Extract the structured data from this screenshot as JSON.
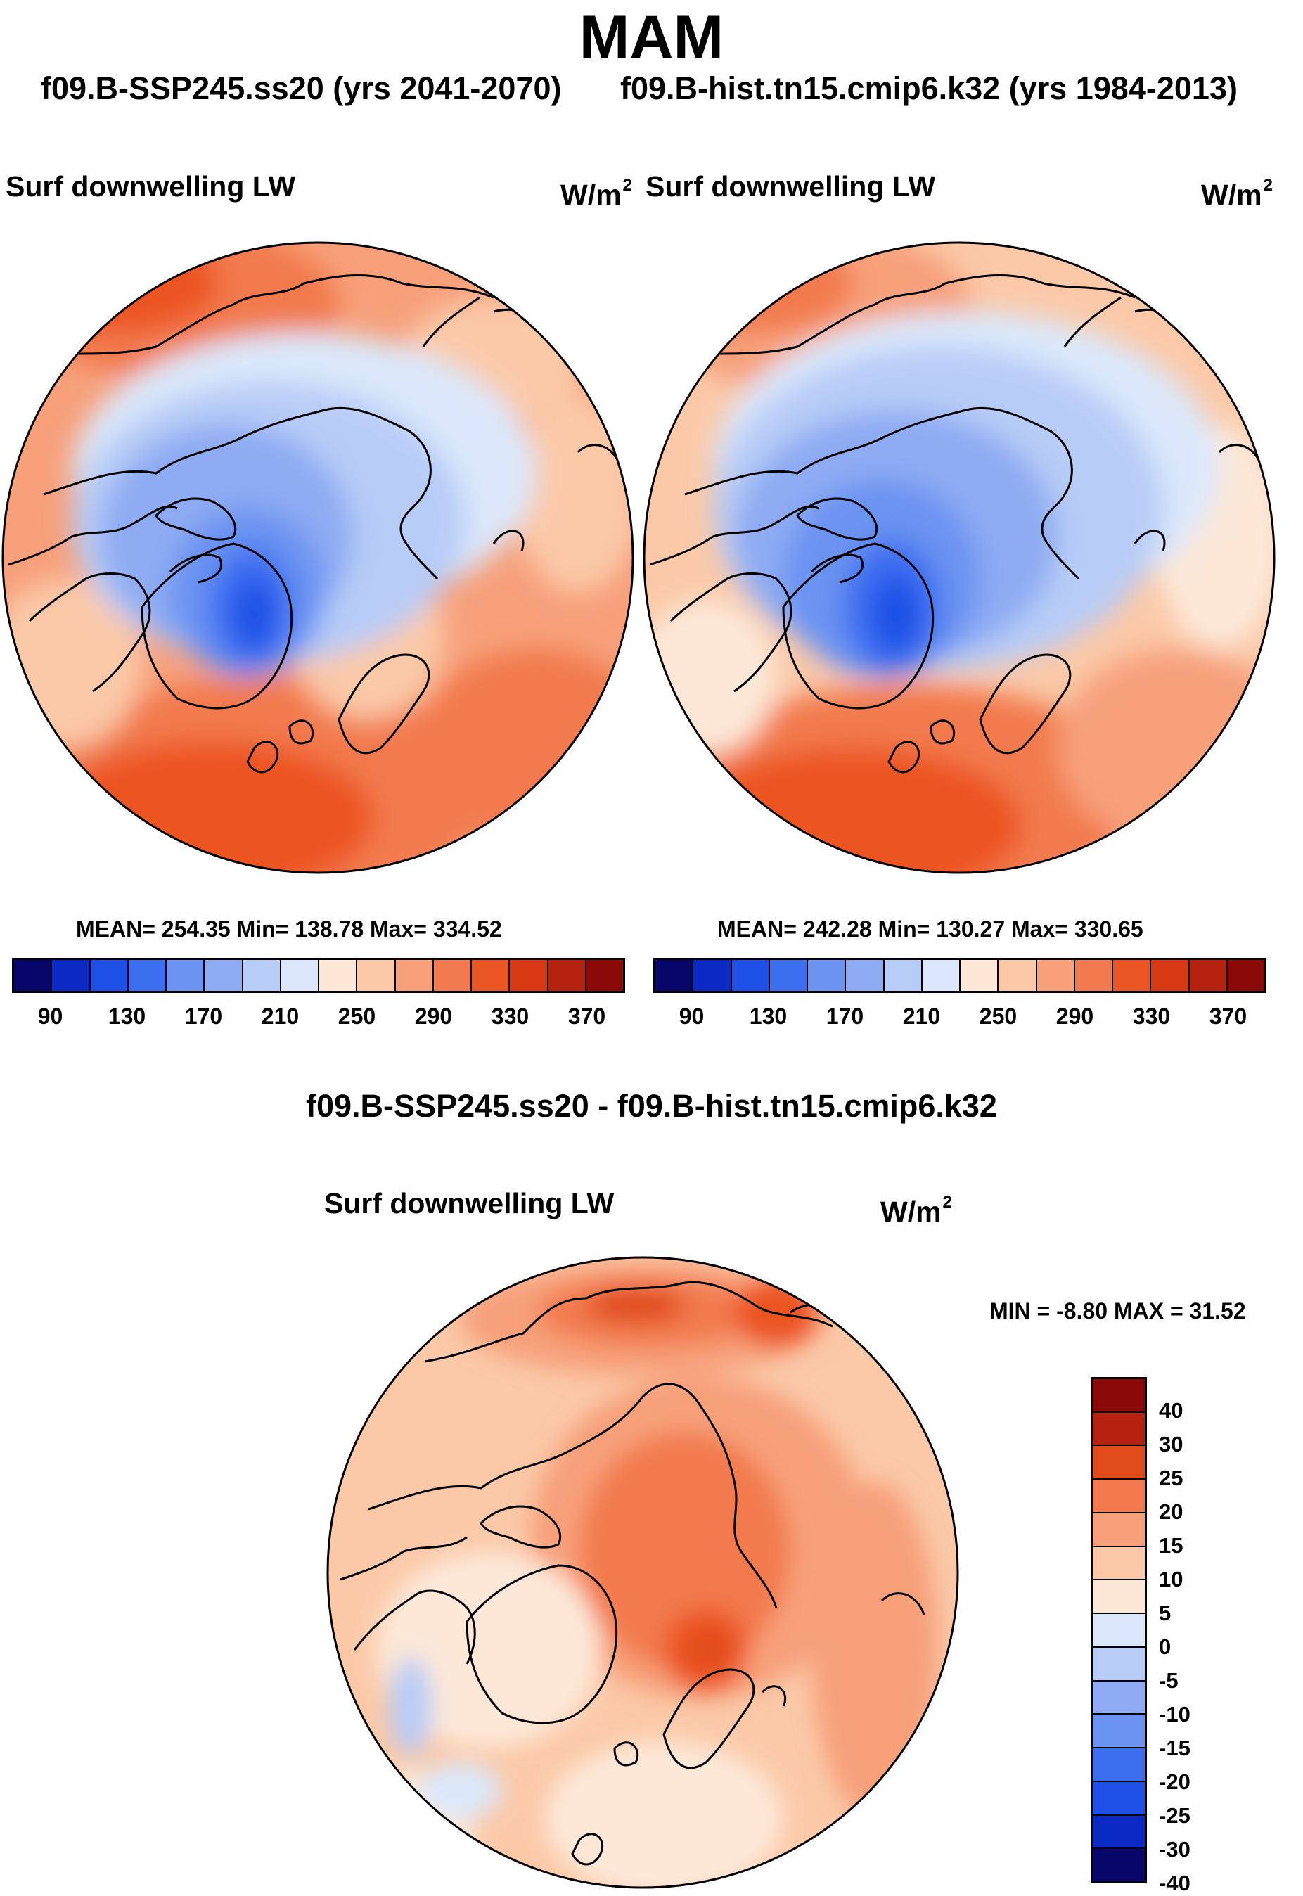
{
  "title": "MAM",
  "subtitles": {
    "left": "f09.B-SSP245.ss20 (yrs 2041-2070)",
    "right": "f09.B-hist.tn15.cmip6.k32 (yrs 1984-2013)"
  },
  "panels": [
    {
      "variable": "Surf downwelling LW",
      "units": "W/m",
      "units_sup": "2",
      "stats": "MEAN= 254.35  Min= 138.78  Max= 334.52"
    },
    {
      "variable": "Surf downwelling LW",
      "units": "W/m",
      "units_sup": "2",
      "stats": "MEAN= 242.28  Min= 130.27  Max= 330.65"
    }
  ],
  "diff": {
    "title": "f09.B-SSP245.ss20 - f09.B-hist.tn15.cmip6.k32",
    "variable": "Surf downwelling LW",
    "units": "W/m",
    "units_sup": "2",
    "stats": "MIN =  -8.80 MAX =  31.52"
  },
  "colorbar_abs": {
    "colors": [
      "#08066b",
      "#0a2ac3",
      "#1e4fe6",
      "#3c6ef0",
      "#6b93f2",
      "#8eabf3",
      "#b7ccf7",
      "#dbe8fb",
      "#fde8d8",
      "#fbc9a8",
      "#f7a07a",
      "#f27a4e",
      "#ec5524",
      "#d83812",
      "#b52310",
      "#8b0a08"
    ],
    "tick_labels": [
      "90",
      "130",
      "170",
      "210",
      "250",
      "290",
      "330",
      "370"
    ]
  },
  "colorbar_diff": {
    "colors": [
      "#8b0a08",
      "#b52310",
      "#e14b1a",
      "#f27a4e",
      "#f7a07a",
      "#fbc9a8",
      "#fde8d8",
      "#dbe8fb",
      "#b7ccf7",
      "#8eabf3",
      "#6b93f2",
      "#3c6ef0",
      "#1e4fe6",
      "#0a2ac3",
      "#08066b"
    ],
    "tick_labels": [
      "40",
      "30",
      "25",
      "20",
      "15",
      "10",
      "5",
      "0",
      "-5",
      "-10",
      "-15",
      "-20",
      "-25",
      "-30",
      "-40"
    ]
  },
  "chart_data": [
    {
      "type": "heatmap",
      "projection": "north polar stereographic",
      "title": "Surf downwelling LW",
      "units": "W/m2",
      "mean": 254.35,
      "min": 138.78,
      "max": 334.52,
      "contour_levels": [
        90,
        110,
        130,
        150,
        170,
        190,
        210,
        230,
        250,
        270,
        290,
        310,
        330,
        350,
        370
      ]
    },
    {
      "type": "heatmap",
      "projection": "north polar stereographic",
      "title": "Surf downwelling LW",
      "units": "W/m2",
      "mean": 242.28,
      "min": 130.27,
      "max": 330.65,
      "contour_levels": [
        90,
        110,
        130,
        150,
        170,
        190,
        210,
        230,
        250,
        270,
        290,
        310,
        330,
        350,
        370
      ]
    },
    {
      "type": "heatmap",
      "projection": "north polar stereographic",
      "title": "Surf downwelling LW",
      "units": "W/m2",
      "min": -8.8,
      "max": 31.52,
      "contour_levels": [
        -40,
        -30,
        -25,
        -20,
        -15,
        -10,
        -5,
        0,
        5,
        10,
        15,
        20,
        25,
        30,
        40
      ]
    }
  ]
}
